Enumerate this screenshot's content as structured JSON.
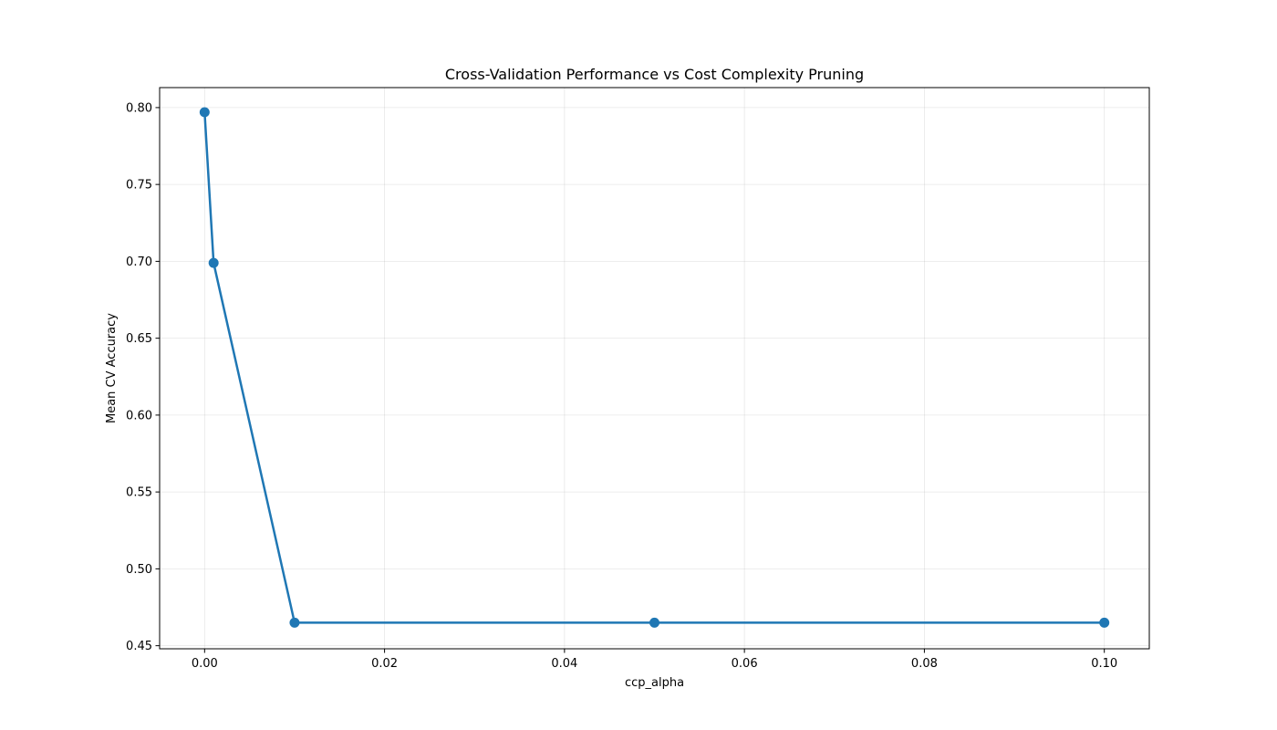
{
  "chart_data": {
    "type": "line",
    "title": "Cross-Validation Performance vs Cost Complexity Pruning",
    "xlabel": "ccp_alpha",
    "ylabel": "Mean CV Accuracy",
    "x": [
      0.0,
      0.001,
      0.01,
      0.05,
      0.1
    ],
    "series": [
      {
        "values": [
          0.797,
          0.699,
          0.465,
          0.465,
          0.465
        ],
        "color": "#1f77b4",
        "marker": "circle"
      }
    ],
    "xlim": [
      -0.005,
      0.105
    ],
    "ylim": [
      0.448,
      0.813
    ],
    "xticks": [
      0.0,
      0.02,
      0.04,
      0.06,
      0.08,
      0.1
    ],
    "xtick_labels": [
      "0.00",
      "0.02",
      "0.04",
      "0.06",
      "0.08",
      "0.10"
    ],
    "yticks": [
      0.45,
      0.5,
      0.55,
      0.6,
      0.65,
      0.7,
      0.75,
      0.8
    ],
    "ytick_labels": [
      "0.45",
      "0.50",
      "0.55",
      "0.60",
      "0.65",
      "0.70",
      "0.75",
      "0.80"
    ],
    "grid": true,
    "legend": "none"
  }
}
